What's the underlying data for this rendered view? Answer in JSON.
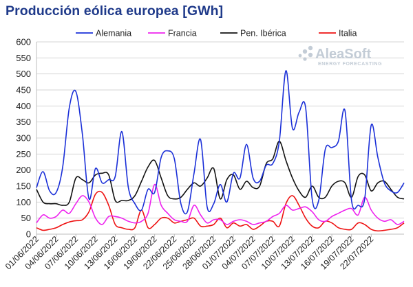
{
  "colors": {
    "Alemania": "#1a2fd8",
    "Francia": "#ee22ee",
    "Pen. Ibérica": "#111111",
    "Italia": "#ee1111",
    "title": "#1f3a8a",
    "grid": "#d4d4d4"
  },
  "watermark": {
    "name": "AleaSoft",
    "sub": "ENERGY FORECASTING",
    "icon": "aleasoft-logo-icon"
  },
  "chart_data": {
    "type": "line",
    "title": "Producción eólica europea [GWh]",
    "xlabel": "",
    "ylabel": "",
    "ylim": [
      0,
      600
    ],
    "yticks": [
      0,
      50,
      100,
      150,
      200,
      250,
      300,
      350,
      400,
      450,
      500,
      550,
      600
    ],
    "grid": true,
    "legend_position": "top",
    "x_start": "01/06/2022",
    "x_end": "27/07/2022",
    "x_ticks": [
      "01/06/2022",
      "04/06/2022",
      "07/06/2022",
      "10/06/2022",
      "13/06/2022",
      "16/06/2022",
      "19/06/2022",
      "22/06/2022",
      "25/06/2022",
      "28/06/2022",
      "01/07/2022",
      "04/07/2022",
      "07/07/2022",
      "10/07/2022",
      "13/07/2022",
      "16/07/2022",
      "19/07/2022",
      "22/07/2022"
    ],
    "series": [
      {
        "name": "Alemania",
        "values": [
          145,
          195,
          135,
          130,
          210,
          395,
          445,
          310,
          110,
          205,
          160,
          170,
          180,
          320,
          145,
          95,
          75,
          140,
          130,
          240,
          260,
          235,
          95,
          70,
          190,
          295,
          85,
          95,
          155,
          100,
          190,
          175,
          280,
          175,
          165,
          215,
          220,
          290,
          510,
          330,
          380,
          395,
          110,
          105,
          265,
          270,
          290,
          385,
          105,
          90,
          110,
          340,
          240,
          160,
          135,
          130,
          160
        ]
      },
      {
        "name": "Francia",
        "values": [
          35,
          60,
          50,
          55,
          75,
          65,
          95,
          120,
          100,
          50,
          30,
          55,
          55,
          50,
          40,
          35,
          40,
          65,
          155,
          90,
          65,
          45,
          40,
          40,
          90,
          60,
          35,
          45,
          45,
          30,
          40,
          45,
          40,
          30,
          35,
          40,
          55,
          65,
          90,
          75,
          80,
          85,
          70,
          45,
          40,
          55,
          65,
          75,
          80,
          60,
          115,
          75,
          50,
          40,
          45,
          30,
          40
        ]
      },
      {
        "name": "Pen. Ibérica",
        "values": [
          140,
          100,
          95,
          95,
          90,
          100,
          175,
          170,
          160,
          185,
          190,
          185,
          105,
          105,
          105,
          120,
          165,
          210,
          230,
          175,
          120,
          110,
          115,
          140,
          160,
          150,
          175,
          205,
          110,
          170,
          185,
          140,
          165,
          145,
          150,
          220,
          235,
          290,
          230,
          175,
          135,
          115,
          150,
          115,
          115,
          150,
          165,
          160,
          115,
          180,
          185,
          135,
          160,
          165,
          140,
          115,
          110
        ]
      },
      {
        "name": "Italia",
        "values": [
          20,
          12,
          15,
          20,
          30,
          38,
          42,
          45,
          70,
          125,
          130,
          90,
          30,
          20,
          15,
          20,
          75,
          20,
          30,
          50,
          50,
          35,
          40,
          45,
          50,
          25,
          25,
          30,
          50,
          20,
          35,
          25,
          30,
          15,
          25,
          40,
          40,
          25,
          95,
          120,
          90,
          50,
          25,
          20,
          40,
          35,
          20,
          15,
          15,
          35,
          30,
          15,
          10,
          12,
          15,
          20,
          35
        ]
      }
    ]
  }
}
